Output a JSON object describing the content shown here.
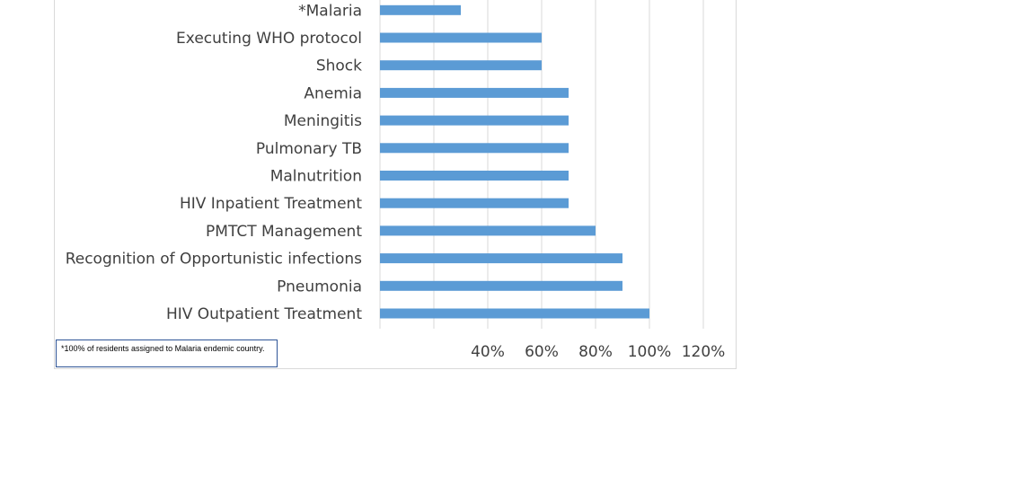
{
  "chart_data": {
    "type": "bar",
    "orientation": "horizontal",
    "categories": [
      "HIV Outpatient Treatment",
      "Pneumonia",
      "Recognition of Opportunistic infections",
      "PMTCT Management",
      "HIV Inpatient Treatment",
      "Malnutrition",
      "Pulmonary TB",
      "Meningitis",
      "Anemia",
      "Shock",
      "Executing WHO protocol",
      "*Malaria"
    ],
    "values": [
      100,
      90,
      90,
      80,
      70,
      70,
      70,
      70,
      70,
      60,
      60,
      30
    ],
    "unit": "%",
    "xlim": [
      0,
      120
    ],
    "ticks": [
      0,
      20,
      40,
      60,
      80,
      100,
      120
    ],
    "tick_labels": [
      "",
      "",
      "40%",
      "60%",
      "80%",
      "100%",
      "120%"
    ],
    "grid": "vertical",
    "bar_color": "#5b9bd5",
    "grid_color": "#d9d9d9"
  },
  "note": {
    "text": "*100% of residents assigned to Malaria endemic country."
  }
}
